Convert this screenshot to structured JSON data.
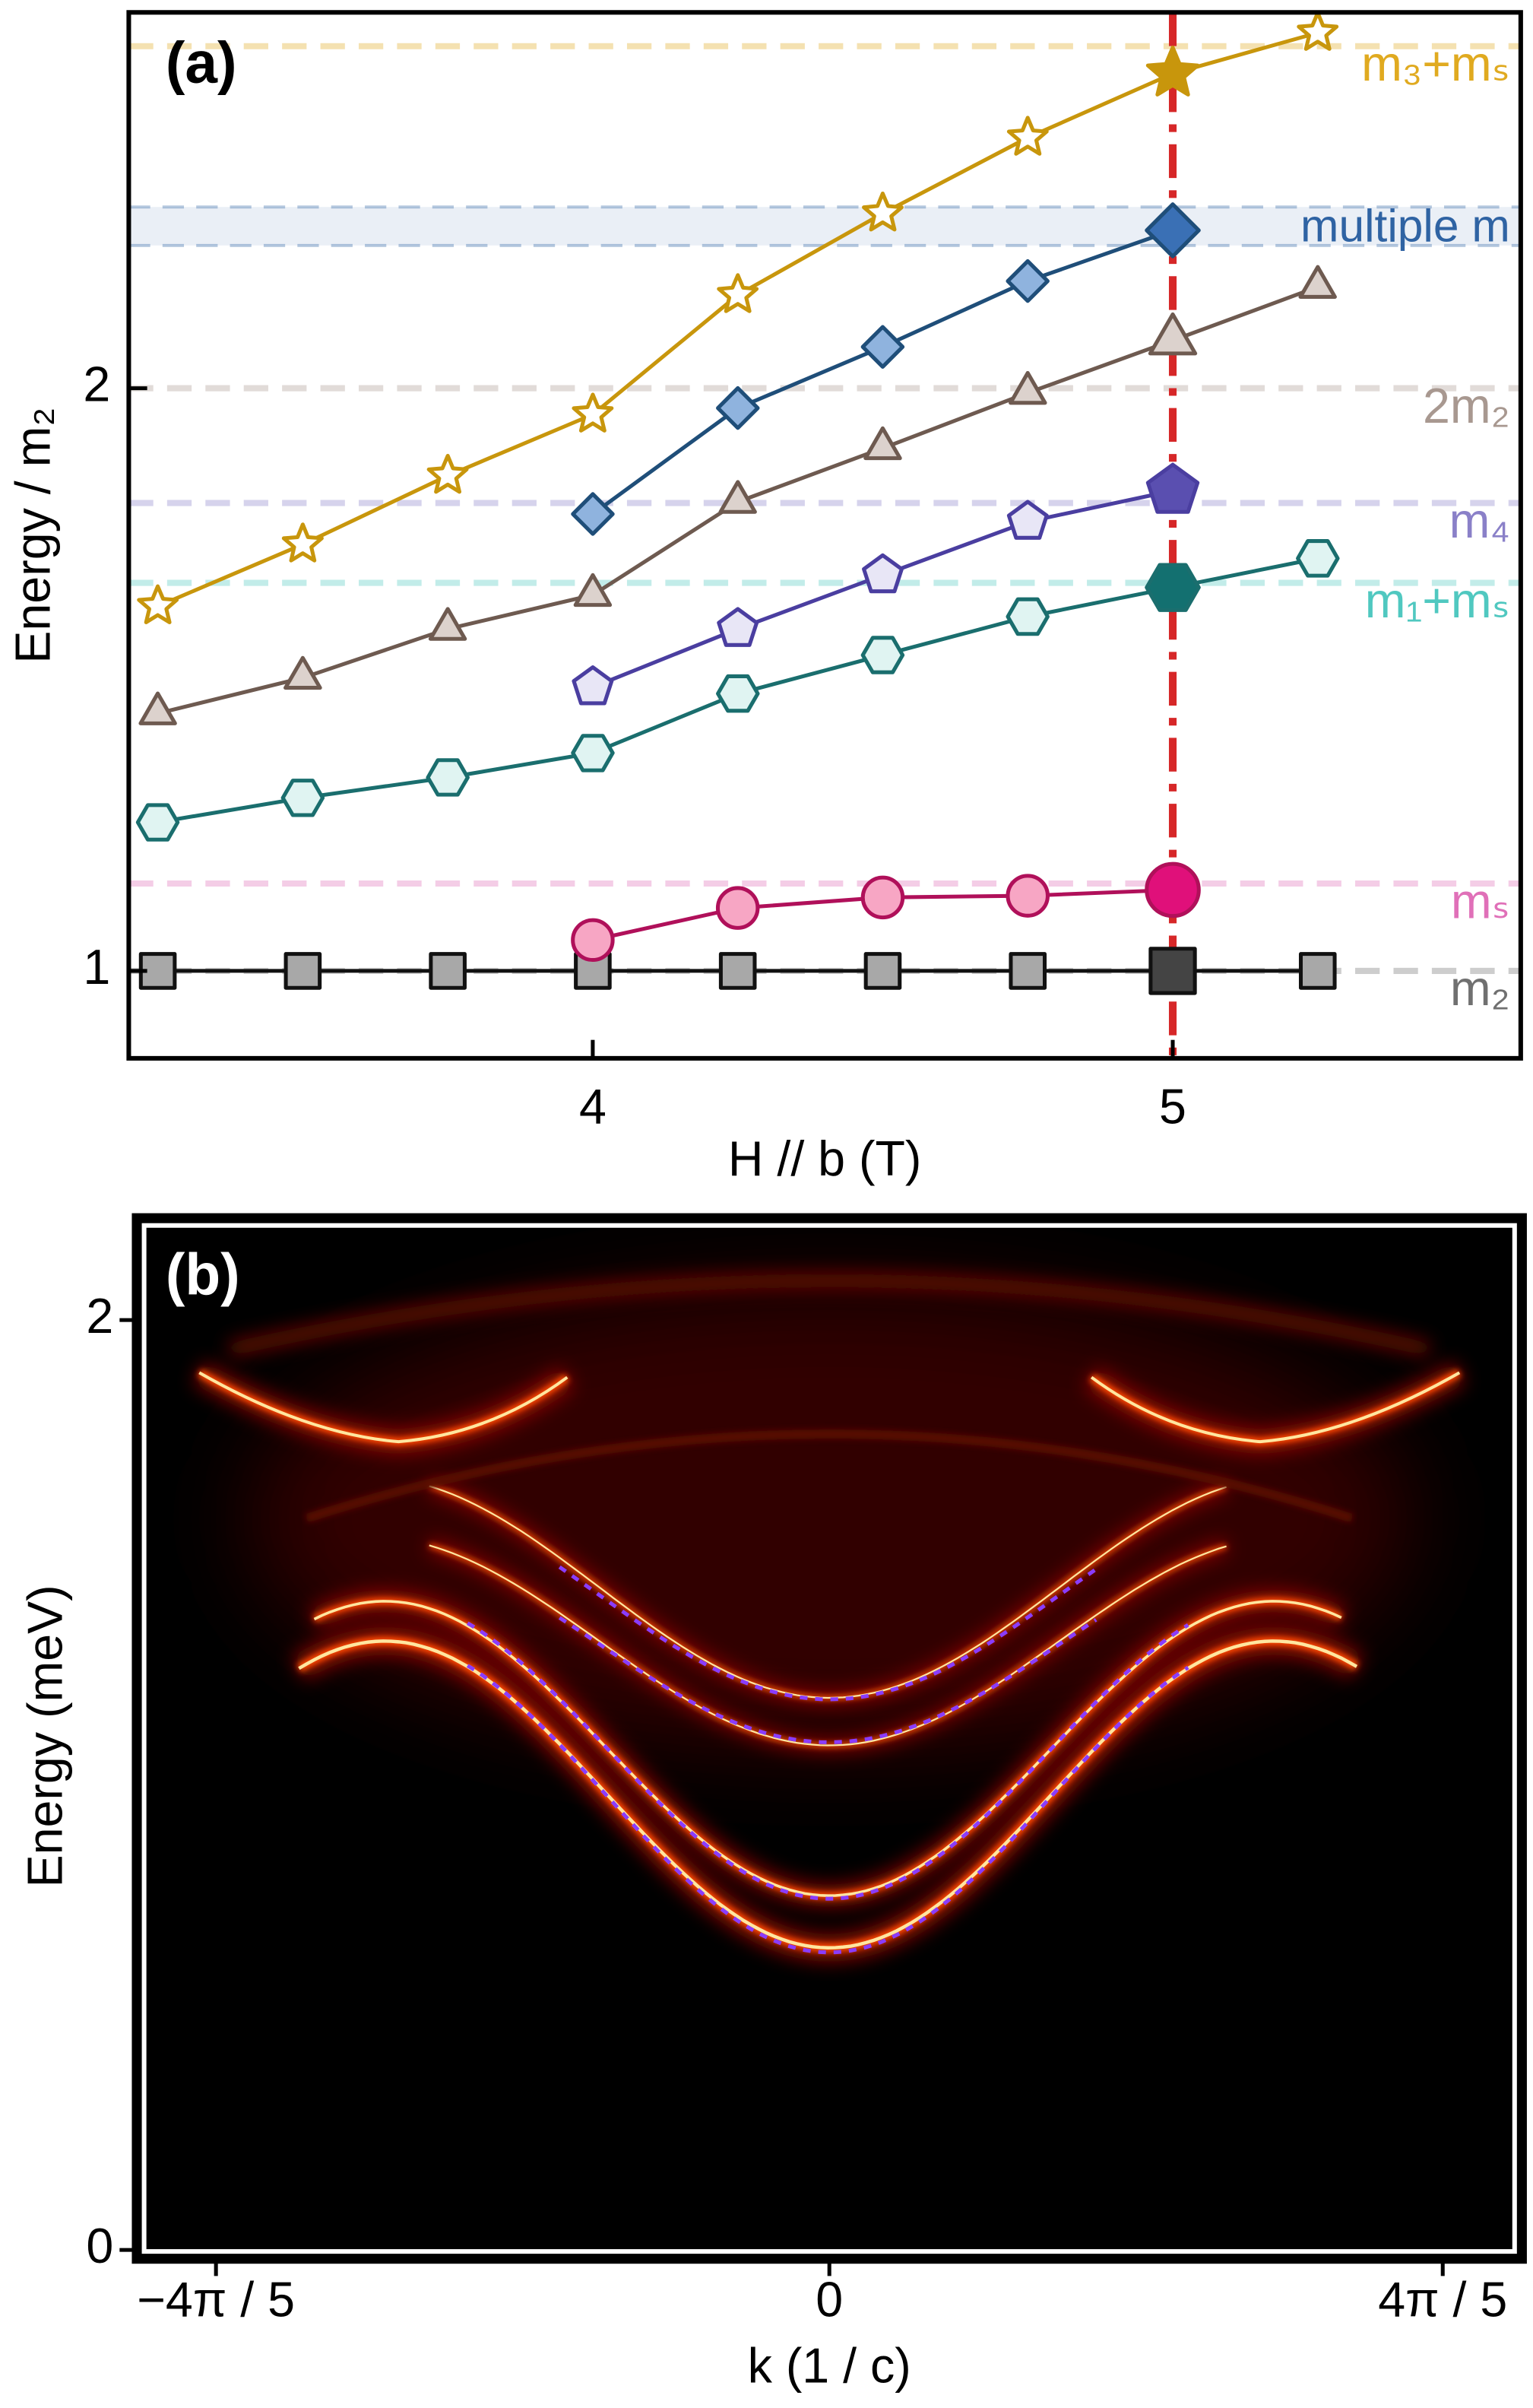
{
  "chart_data": [
    {
      "type": "line",
      "panel_label": "(a)",
      "xlabel": "H // b (T)",
      "ylabel": "Energy / m₂",
      "xlim": [
        3.2,
        5.6
      ],
      "xticks": [
        4,
        5
      ],
      "ylim": [
        0.85,
        2.645
      ],
      "yticks": [
        1,
        2
      ],
      "x": [
        3.25,
        3.5,
        3.75,
        4,
        4.25,
        4.5,
        4.75,
        5,
        5.25
      ],
      "vline": {
        "value": 5,
        "color": "#d62728"
      },
      "reference_band": {
        "values": [
          2.245,
          2.311
        ],
        "label": "multiple m",
        "color": "#2f63a3"
      },
      "reference_lines": [
        {
          "value": 2.587,
          "label": "m₃+mₛ",
          "color": "#e0aa20"
        },
        {
          "value": 2.0,
          "label": "2m₂",
          "color": "#a89890"
        },
        {
          "value": 1.803,
          "label": "m₄",
          "color": "#8a80c8"
        },
        {
          "value": 1.666,
          "label": "m₁+mₛ",
          "color": "#50c8c0"
        },
        {
          "value": 1.15,
          "label": "mₛ",
          "color": "#e070b8"
        },
        {
          "value": 1.0,
          "label": "m₂",
          "color": "#707070"
        }
      ],
      "series": [
        {
          "marker": "square",
          "color": "#111111",
          "fill": "#a8a8a8",
          "highlight": "#444444",
          "values": [
            1,
            1,
            1,
            1,
            1,
            1,
            1,
            1,
            1
          ]
        },
        {
          "marker": "circle",
          "color": "#b0105a",
          "fill": "#f7a6c4",
          "highlight": "#e0107a",
          "values": [
            null,
            null,
            null,
            1.053,
            1.108,
            1.126,
            1.129,
            1.139,
            null
          ]
        },
        {
          "marker": "hexagon",
          "color": "#1a6e6e",
          "fill": "#e0f4f2",
          "highlight": "#137070",
          "values": [
            1.255,
            1.297,
            1.332,
            1.374,
            1.476,
            1.542,
            1.608,
            1.658,
            1.708
          ]
        },
        {
          "marker": "pentagon",
          "color": "#4a3ea0",
          "fill": "#e8e6f6",
          "highlight": "#5a4fb0",
          "values": [
            null,
            null,
            null,
            1.487,
            1.587,
            1.679,
            1.771,
            1.824,
            null
          ]
        },
        {
          "marker": "triangle",
          "color": "#6e5a50",
          "fill": "#dcd2cd",
          "highlight": "#dcd2cd",
          "values": [
            1.442,
            1.503,
            1.587,
            1.645,
            1.805,
            1.897,
            1.992,
            2.082,
            2.174
          ]
        },
        {
          "marker": "diamond",
          "color": "#1f4e79",
          "fill": "#8fb3de",
          "highlight": "#3a70b5",
          "values": [
            null,
            null,
            null,
            1.784,
            1.966,
            2.071,
            2.184,
            2.271,
            null
          ]
        },
        {
          "marker": "star",
          "color": "#c8960c",
          "fill": "#ffffff",
          "highlight": "#c8960c",
          "values": [
            1.626,
            1.732,
            1.85,
            1.955,
            2.16,
            2.3,
            2.43,
            2.54,
            2.61
          ]
        }
      ]
    },
    {
      "type": "heatmap",
      "panel_label": "(b)",
      "xlabel": "k (1 / c)",
      "ylabel": "Energy (meV)",
      "xlim": [
        -2.82,
        2.82
      ],
      "xticks": [
        {
          "value": -2.513,
          "label": "−4π / 5"
        },
        0,
        {
          "value": 2.513,
          "label": "4π / 5"
        }
      ],
      "ylim": [
        0,
        2.21
      ],
      "yticks": [
        0,
        2
      ]
    }
  ]
}
